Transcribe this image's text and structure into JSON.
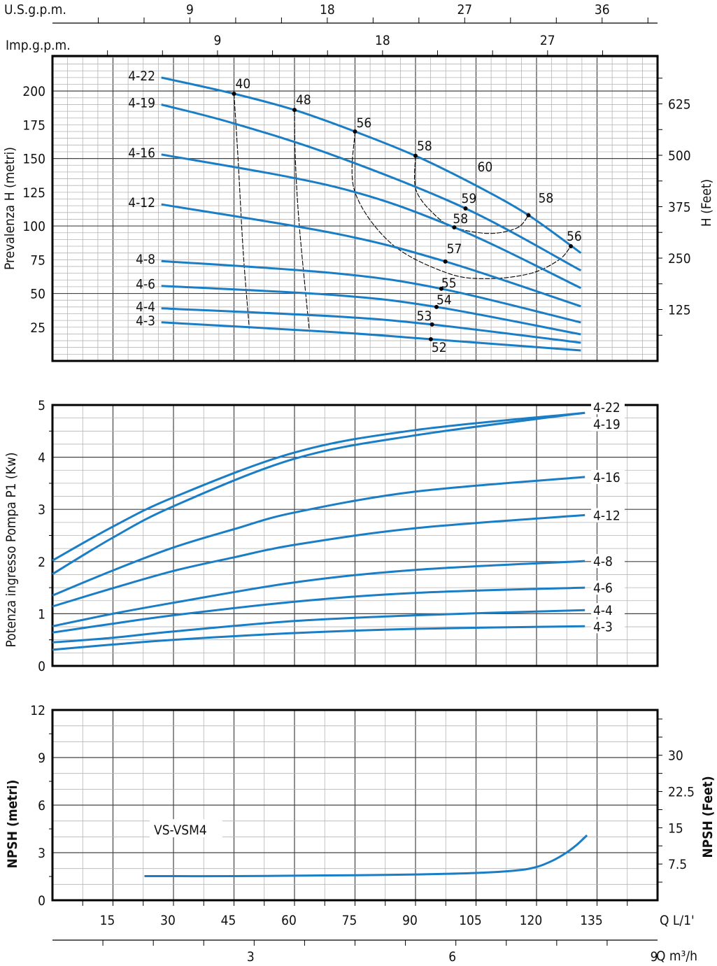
{
  "colors": {
    "curve": "#1a7ec6",
    "grid_minor": "#b4b4b4",
    "grid_major": "#444444",
    "frame": "#000000",
    "contour": "#000000"
  },
  "axes": {
    "us_gpm": {
      "label": "U.S.g.p.m.",
      "ticks": [
        9,
        18,
        27,
        36
      ]
    },
    "imp_gpm": {
      "label": "Imp.g.p.m.",
      "ticks": [
        9,
        18,
        27
      ]
    },
    "q_lmin": {
      "label": "Q L/1'",
      "ticks": [
        15,
        30,
        45,
        60,
        75,
        90,
        105,
        120,
        135
      ]
    },
    "q_m3h": {
      "label": "Q m³/h",
      "ticks": [
        3,
        6,
        9
      ]
    }
  },
  "chart_data": [
    {
      "type": "line",
      "ylabel": "Prevalenza H (metri)",
      "ylabel_right": "H (Feet)",
      "xlim": [
        0,
        150
      ],
      "ylim": [
        0,
        226
      ],
      "yticks": [
        25,
        50,
        75,
        100,
        125,
        150,
        175,
        200
      ],
      "yticks_right": [
        125,
        250,
        375,
        500,
        625
      ],
      "grid": true,
      "series": [
        {
          "name": "4-22",
          "points": [
            [
              27,
              210
            ],
            [
              45,
              198
            ],
            [
              60,
              186
            ],
            [
              75,
              170
            ],
            [
              90,
              152
            ],
            [
              105,
              130
            ],
            [
              118,
              108
            ],
            [
              131,
              80
            ]
          ]
        },
        {
          "name": "4-19",
          "points": [
            [
              27,
              190
            ],
            [
              45,
              176
            ],
            [
              70,
              152
            ],
            [
              102.4,
              113
            ],
            [
              131,
              67
            ]
          ]
        },
        {
          "name": "4-16",
          "points": [
            [
              27,
              153
            ],
            [
              70,
              129
            ],
            [
              99.6,
              99
            ],
            [
              131,
              54
            ]
          ]
        },
        {
          "name": "4-12",
          "points": [
            [
              27,
              116
            ],
            [
              70,
              94.5
            ],
            [
              97.4,
              73.7
            ],
            [
              131,
              40.5
            ]
          ]
        },
        {
          "name": "4-8",
          "points": [
            [
              27,
              74
            ],
            [
              70,
              65
            ],
            [
              96.4,
              53.5
            ],
            [
              131,
              28.5
            ]
          ]
        },
        {
          "name": "4-6",
          "points": [
            [
              27,
              55.6
            ],
            [
              70,
              48.8
            ],
            [
              95.2,
              40
            ],
            [
              131,
              19.7
            ]
          ]
        },
        {
          "name": "4-4",
          "points": [
            [
              27,
              39
            ],
            [
              70,
              33
            ],
            [
              94.1,
              27
            ],
            [
              131,
              13.5
            ]
          ]
        },
        {
          "name": "4-3",
          "points": [
            [
              27,
              28.6
            ],
            [
              70,
              21.3
            ],
            [
              93.8,
              16.1
            ],
            [
              131,
              7.8
            ]
          ]
        }
      ],
      "efficiency_points": [
        {
          "label": "40",
          "q": 45,
          "h": 198,
          "marker": true
        },
        {
          "label": "48",
          "q": 60,
          "h": 186,
          "marker": true
        },
        {
          "label": "56",
          "q": 75,
          "h": 170,
          "marker": true
        },
        {
          "label": "58",
          "q": 90,
          "h": 152,
          "marker": true
        },
        {
          "label": "60",
          "q": 105,
          "h": 130,
          "marker": false
        },
        {
          "label": "58",
          "q": 118,
          "h": 108,
          "marker": true
        },
        {
          "label": "56",
          "q": 128.5,
          "h": 85,
          "marker": true
        },
        {
          "label": "59",
          "q": 102.4,
          "h": 113,
          "marker": true
        },
        {
          "label": "58",
          "q": 99.6,
          "h": 99,
          "marker": true
        },
        {
          "label": "57",
          "q": 97.4,
          "h": 73.7,
          "marker": true
        },
        {
          "label": "55",
          "q": 96.4,
          "h": 53.5,
          "marker": true
        },
        {
          "label": "54",
          "q": 95.2,
          "h": 40,
          "marker": true
        },
        {
          "label": "53",
          "q": 94.1,
          "h": 27,
          "marker": true
        },
        {
          "label": "52",
          "q": 93.8,
          "h": 16.1,
          "marker": true
        }
      ],
      "efficiency_contours": [
        {
          "value": "40",
          "points": [
            [
              45,
              198
            ],
            [
              46,
              150
            ],
            [
              47.3,
              80
            ],
            [
              48.8,
              24
            ]
          ]
        },
        {
          "value": "48",
          "points": [
            [
              60,
              186
            ],
            [
              60.2,
              150
            ],
            [
              61.2,
              100
            ],
            [
              63.7,
              22
            ]
          ]
        },
        {
          "value": "56",
          "points": [
            [
              75,
              170
            ],
            [
              74.9,
              126
            ],
            [
              84,
              87
            ],
            [
              98,
              65
            ],
            [
              108.3,
              61
            ],
            [
              118.7,
              65
            ],
            [
              125.6,
              75
            ],
            [
              128.5,
              85
            ]
          ]
        },
        {
          "value": "58",
          "points": [
            [
              90,
              152
            ],
            [
              90.1,
              127
            ],
            [
              94.5,
              109
            ],
            [
              99.6,
              99
            ],
            [
              108.3,
              94.5
            ],
            [
              115.2,
              98.6
            ],
            [
              118,
              108
            ]
          ]
        }
      ]
    },
    {
      "type": "line",
      "ylabel": "Potenza ingresso Pompa P1 (Kw)",
      "xlim": [
        0,
        150
      ],
      "ylim": [
        0,
        5
      ],
      "yticks": [
        0,
        1,
        2,
        3,
        4,
        5
      ],
      "grid": true,
      "series": [
        {
          "name": "4-22",
          "points": [
            [
              0,
              2.02
            ],
            [
              15,
              2.67
            ],
            [
              30,
              3.23
            ],
            [
              60,
              4.09
            ],
            [
              90,
              4.52
            ],
            [
              132,
              4.85
            ]
          ]
        },
        {
          "name": "4-19",
          "points": [
            [
              0,
              1.76
            ],
            [
              15,
              2.46
            ],
            [
              30,
              3.06
            ],
            [
              60,
              3.97
            ],
            [
              90,
              4.42
            ],
            [
              132,
              4.85
            ]
          ]
        },
        {
          "name": "4-16",
          "points": [
            [
              0,
              1.35
            ],
            [
              15,
              1.83
            ],
            [
              30,
              2.27
            ],
            [
              45,
              2.62
            ],
            [
              60,
              2.94
            ],
            [
              90,
              3.34
            ],
            [
              132,
              3.62
            ]
          ]
        },
        {
          "name": "4-12",
          "points": [
            [
              0,
              1.14
            ],
            [
              15,
              1.49
            ],
            [
              30,
              1.82
            ],
            [
              45,
              2.08
            ],
            [
              60,
              2.32
            ],
            [
              90,
              2.64
            ],
            [
              132,
              2.89
            ]
          ]
        },
        {
          "name": "4-8",
          "points": [
            [
              0,
              0.76
            ],
            [
              15,
              1.0
            ],
            [
              30,
              1.21
            ],
            [
              60,
              1.6
            ],
            [
              90,
              1.84
            ],
            [
              132,
              2.01
            ]
          ]
        },
        {
          "name": "4-6",
          "points": [
            [
              0,
              0.64
            ],
            [
              15,
              0.81
            ],
            [
              30,
              0.97
            ],
            [
              60,
              1.23
            ],
            [
              90,
              1.4
            ],
            [
              132,
              1.5
            ]
          ]
        },
        {
          "name": "4-4",
          "points": [
            [
              0,
              0.45
            ],
            [
              15,
              0.54
            ],
            [
              30,
              0.66
            ],
            [
              60,
              0.86
            ],
            [
              90,
              0.97
            ],
            [
              132,
              1.07
            ]
          ]
        },
        {
          "name": "4-3",
          "points": [
            [
              0,
              0.31
            ],
            [
              15,
              0.41
            ],
            [
              30,
              0.5
            ],
            [
              60,
              0.63
            ],
            [
              90,
              0.71
            ],
            [
              132,
              0.76
            ]
          ]
        }
      ]
    },
    {
      "type": "line",
      "ylabel": "NPSH (metri)",
      "ylabel_right": "NPSH (Feet)",
      "xlim": [
        0,
        150
      ],
      "ylim": [
        0,
        12
      ],
      "yticks": [
        0,
        3,
        6,
        9,
        12
      ],
      "yticks_right": [
        7.5,
        15,
        22.5,
        30
      ],
      "grid": true,
      "series": [
        {
          "name": "VS-VSM4",
          "points": [
            [
              22.8,
              1.52
            ],
            [
              45,
              1.52
            ],
            [
              60,
              1.55
            ],
            [
              75,
              1.58
            ],
            [
              90,
              1.63
            ],
            [
              105,
              1.72
            ],
            [
              115,
              1.88
            ],
            [
              120,
              2.1
            ],
            [
              124,
              2.5
            ],
            [
              127.4,
              3.0
            ],
            [
              130,
              3.5
            ],
            [
              132.5,
              4.1
            ]
          ]
        }
      ]
    }
  ]
}
